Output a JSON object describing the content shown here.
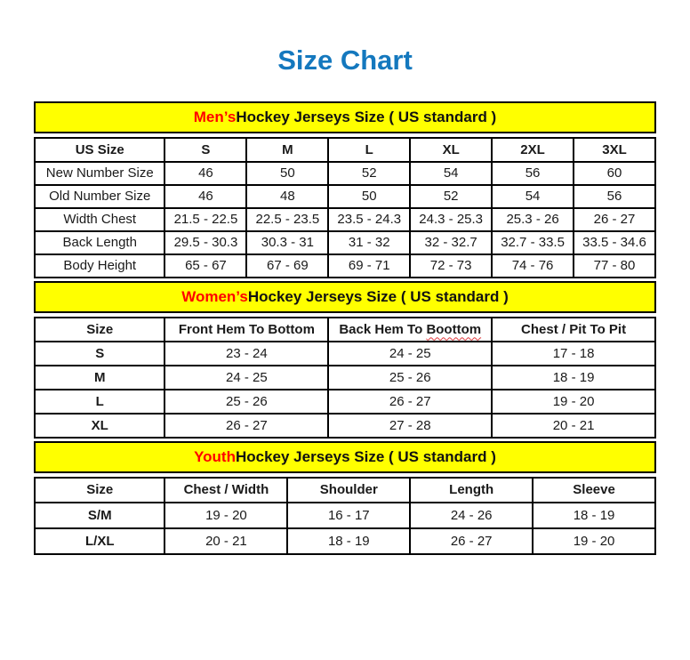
{
  "title": "Size Chart",
  "colors": {
    "title_blue": "#1478BE",
    "banner_yellow": "#FFFF00",
    "highlight_red": "#FF0000",
    "squiggle_red": "#E03A3E",
    "border_black": "#000000"
  },
  "sections": [
    {
      "id": "mens",
      "heading": {
        "highlight": "Men’s",
        "rest": " Hockey Jerseys Size ( US standard )"
      },
      "columns": [
        "US Size",
        "S",
        "M",
        "L",
        "XL",
        "2XL",
        "3XL"
      ],
      "rows": [
        [
          "New Number Size",
          "46",
          "50",
          "52",
          "54",
          "56",
          "60"
        ],
        [
          "Old Number Size",
          "46",
          "48",
          "50",
          "52",
          "54",
          "56"
        ],
        [
          "Width Chest",
          "21.5 - 22.5",
          "22.5 - 23.5",
          "23.5 - 24.3",
          "24.3 - 25.3",
          "25.3 - 26",
          "26 - 27"
        ],
        [
          "Back Length",
          "29.5 - 30.3",
          "30.3 - 31",
          "31 - 32",
          "32 - 32.7",
          "32.7 - 33.5",
          "33.5 - 34.6"
        ],
        [
          "Body Height",
          "65 - 67",
          "67 - 69",
          "69 - 71",
          "72 - 73",
          "74 - 76",
          "77 - 80"
        ]
      ],
      "bold_row_labels": false
    },
    {
      "id": "womens",
      "heading": {
        "highlight": "Women’s",
        "rest": " Hockey Jerseys Size ( US standard )"
      },
      "columns": [
        "Size",
        "Front Hem To Bottom",
        "Back Hem To Boottom",
        "Chest / Pit To Pit"
      ],
      "squiggle": {
        "col": 2,
        "word": "Boottom"
      },
      "rows": [
        [
          "S",
          "23 - 24",
          "24 - 25",
          "17 - 18"
        ],
        [
          "M",
          "24 - 25",
          "25 - 26",
          "18 - 19"
        ],
        [
          "L",
          "25 - 26",
          "26 - 27",
          "19 - 20"
        ],
        [
          "XL",
          "26 - 27",
          "27 - 28",
          "20 - 21"
        ]
      ],
      "bold_row_labels": true
    },
    {
      "id": "youth",
      "heading": {
        "highlight": "Youth",
        "rest": " Hockey Jerseys Size ( US standard )"
      },
      "columns": [
        "Size",
        "Chest / Width",
        "Shoulder",
        "Length",
        "Sleeve"
      ],
      "rows": [
        [
          "S/M",
          "19 - 20",
          "16 - 17",
          "24 - 26",
          "18 - 19"
        ],
        [
          "L/XL",
          "20 - 21",
          "18 - 19",
          "26 - 27",
          "19 - 20"
        ]
      ],
      "bold_row_labels": true
    }
  ]
}
